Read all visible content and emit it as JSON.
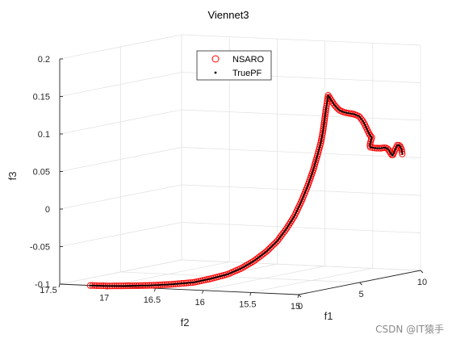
{
  "chart_data": {
    "type": "scatter",
    "title": "Viennet3",
    "xlabel": "f1",
    "ylabel": "f2",
    "zlabel": "f3",
    "x_ticks": [
      "0",
      "5",
      "10"
    ],
    "y_ticks": [
      "17.5",
      "17",
      "16.5",
      "16",
      "15.5",
      "15"
    ],
    "z_ticks": [
      "-0.1",
      "-0.05",
      "0",
      "0.05",
      "0.1",
      "0.15",
      "0.2"
    ],
    "xlim": [
      0,
      10
    ],
    "ylim": [
      15,
      17.5
    ],
    "zlim": [
      -0.1,
      0.2
    ],
    "grid": true,
    "legend_position": "top-left",
    "series": [
      {
        "name": "NSARO",
        "marker": "circle",
        "color": "#ff0000",
        "points": [
          [
            0.0,
            17.18,
            -0.1
          ],
          [
            0.1,
            17.0,
            -0.1
          ],
          [
            0.2,
            16.8,
            -0.099
          ],
          [
            0.4,
            16.6,
            -0.098
          ],
          [
            0.6,
            16.4,
            -0.096
          ],
          [
            0.8,
            16.2,
            -0.093
          ],
          [
            1.0,
            16.05,
            -0.088
          ],
          [
            1.2,
            15.9,
            -0.082
          ],
          [
            1.4,
            15.78,
            -0.074
          ],
          [
            1.6,
            15.67,
            -0.064
          ],
          [
            1.8,
            15.57,
            -0.052
          ],
          [
            2.0,
            15.48,
            -0.038
          ],
          [
            2.2,
            15.41,
            -0.022
          ],
          [
            2.4,
            15.35,
            -0.005
          ],
          [
            2.6,
            15.3,
            0.015
          ],
          [
            2.8,
            15.26,
            0.035
          ],
          [
            3.0,
            15.23,
            0.055
          ],
          [
            3.15,
            15.21,
            0.072
          ],
          [
            3.3,
            15.19,
            0.09
          ],
          [
            3.4,
            15.18,
            0.105
          ],
          [
            3.45,
            15.17,
            0.12
          ],
          [
            3.5,
            15.16,
            0.135
          ],
          [
            3.55,
            15.15,
            0.148
          ],
          [
            3.6,
            15.15,
            0.153
          ],
          [
            3.85,
            15.12,
            0.14
          ],
          [
            4.1,
            15.1,
            0.132
          ],
          [
            4.4,
            15.08,
            0.128
          ],
          [
            4.7,
            15.07,
            0.126
          ],
          [
            5.0,
            15.06,
            0.124
          ],
          [
            5.3,
            15.04,
            0.12
          ],
          [
            5.55,
            15.03,
            0.112
          ],
          [
            5.75,
            15.02,
            0.102
          ],
          [
            5.9,
            15.01,
            0.094
          ],
          [
            6.0,
            15.0,
            0.09
          ],
          [
            6.0,
            15.02,
            0.08
          ],
          [
            6.2,
            15.04,
            0.076
          ],
          [
            6.5,
            15.02,
            0.074
          ],
          [
            6.8,
            15.01,
            0.073
          ],
          [
            7.1,
            15.0,
            0.073
          ],
          [
            7.35,
            15.0,
            0.07
          ],
          [
            7.55,
            15.0,
            0.064
          ],
          [
            7.7,
            15.0,
            0.06
          ],
          [
            7.9,
            15.0,
            0.067
          ],
          [
            8.1,
            15.0,
            0.073
          ],
          [
            8.3,
            15.0,
            0.072
          ],
          [
            8.45,
            15.0,
            0.066
          ],
          [
            8.5,
            15.0,
            0.06
          ]
        ]
      },
      {
        "name": "TruePF",
        "marker": "dot",
        "color": "#000000",
        "points": []
      }
    ]
  },
  "watermark": "CSDN @IT猿手"
}
